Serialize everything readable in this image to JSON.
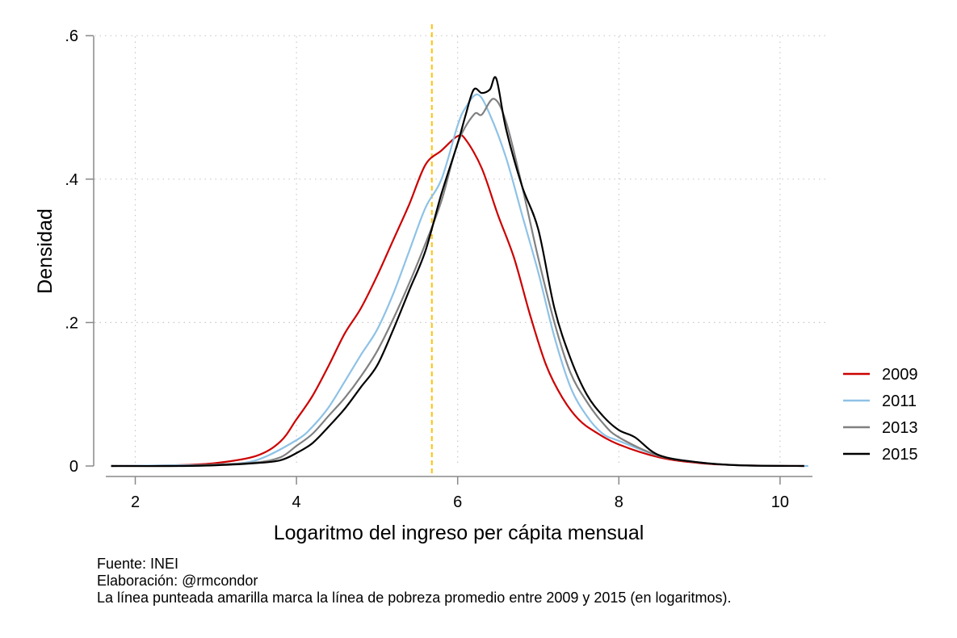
{
  "chart_data": {
    "type": "line",
    "title": "",
    "xlabel": "Logaritmo del ingreso per cápita mensual",
    "ylabel": "Densidad",
    "xlim": [
      1.5,
      10.5
    ],
    "ylim": [
      0,
      0.6
    ],
    "xticks": [
      2,
      4,
      6,
      8,
      10
    ],
    "xtick_labels": [
      "2",
      "4",
      "6",
      "8",
      "10"
    ],
    "yticks": [
      0,
      0.2,
      0.4,
      0.6
    ],
    "ytick_labels": [
      "0",
      ".2",
      ".4",
      ".6"
    ],
    "grid": true,
    "legend_position": "right",
    "reference_line": {
      "x": 5.68,
      "color": "#FFC20E",
      "style": "dashed"
    },
    "series": [
      {
        "name": "2009",
        "color": "#CC0000",
        "x": [
          1.7,
          2.5,
          3.0,
          3.5,
          3.8,
          4.0,
          4.2,
          4.4,
          4.6,
          4.8,
          5.0,
          5.2,
          5.4,
          5.6,
          5.8,
          6.0,
          6.1,
          6.3,
          6.5,
          6.7,
          6.9,
          7.1,
          7.3,
          7.5,
          7.7,
          8.0,
          8.5,
          9.0,
          9.5,
          10.3
        ],
        "values": [
          0,
          0.001,
          0.004,
          0.014,
          0.034,
          0.065,
          0.098,
          0.14,
          0.185,
          0.22,
          0.265,
          0.315,
          0.365,
          0.42,
          0.44,
          0.46,
          0.455,
          0.415,
          0.35,
          0.29,
          0.21,
          0.14,
          0.095,
          0.065,
          0.048,
          0.03,
          0.012,
          0.004,
          0.001,
          0
        ]
      },
      {
        "name": "2011",
        "color": "#8EC2E6",
        "x": [
          1.7,
          2.5,
          3.0,
          3.5,
          4.0,
          4.2,
          4.4,
          4.6,
          4.8,
          5.0,
          5.2,
          5.4,
          5.6,
          5.8,
          6.0,
          6.1,
          6.25,
          6.4,
          6.6,
          6.8,
          7.0,
          7.2,
          7.4,
          7.6,
          7.8,
          8.0,
          8.5,
          9.0,
          9.5,
          10.35
        ],
        "values": [
          0,
          0.001,
          0.002,
          0.008,
          0.036,
          0.055,
          0.082,
          0.118,
          0.155,
          0.19,
          0.24,
          0.3,
          0.36,
          0.4,
          0.475,
          0.5,
          0.518,
          0.49,
          0.43,
          0.35,
          0.27,
          0.18,
          0.11,
          0.07,
          0.045,
          0.035,
          0.014,
          0.005,
          0.001,
          0
        ]
      },
      {
        "name": "2013",
        "color": "#808080",
        "x": [
          1.7,
          2.5,
          3.0,
          3.5,
          3.8,
          4.0,
          4.2,
          4.4,
          4.6,
          4.8,
          5.0,
          5.2,
          5.4,
          5.6,
          5.8,
          6.0,
          6.2,
          6.3,
          6.45,
          6.6,
          6.8,
          7.0,
          7.2,
          7.4,
          7.6,
          7.8,
          8.0,
          8.5,
          9.0,
          9.5,
          10.3
        ],
        "values": [
          0,
          0,
          0.002,
          0.005,
          0.012,
          0.028,
          0.045,
          0.07,
          0.095,
          0.125,
          0.16,
          0.205,
          0.255,
          0.31,
          0.37,
          0.45,
          0.49,
          0.49,
          0.512,
          0.48,
          0.39,
          0.29,
          0.2,
          0.13,
          0.09,
          0.06,
          0.04,
          0.014,
          0.005,
          0.001,
          0
        ]
      },
      {
        "name": "2015",
        "color": "#000000",
        "x": [
          1.7,
          2.5,
          3.0,
          3.5,
          3.8,
          4.0,
          4.2,
          4.4,
          4.6,
          4.8,
          5.0,
          5.2,
          5.4,
          5.6,
          5.8,
          6.0,
          6.1,
          6.2,
          6.3,
          6.4,
          6.48,
          6.6,
          6.8,
          7.0,
          7.2,
          7.4,
          7.6,
          7.8,
          8.0,
          8.2,
          8.5,
          9.0,
          9.5,
          10.3
        ],
        "values": [
          0,
          0,
          0.001,
          0.004,
          0.008,
          0.018,
          0.032,
          0.055,
          0.08,
          0.11,
          0.14,
          0.19,
          0.245,
          0.3,
          0.38,
          0.45,
          0.49,
          0.525,
          0.52,
          0.525,
          0.54,
          0.47,
          0.39,
          0.33,
          0.22,
          0.15,
          0.1,
          0.07,
          0.05,
          0.04,
          0.015,
          0.005,
          0.001,
          0
        ]
      }
    ]
  },
  "notes": {
    "source": "Fuente: INEI",
    "author": "Elaboración: @rmcondor",
    "caption": "La línea punteada amarilla marca la línea de pobreza promedio entre 2009 y 2015 (en logaritmos)."
  }
}
